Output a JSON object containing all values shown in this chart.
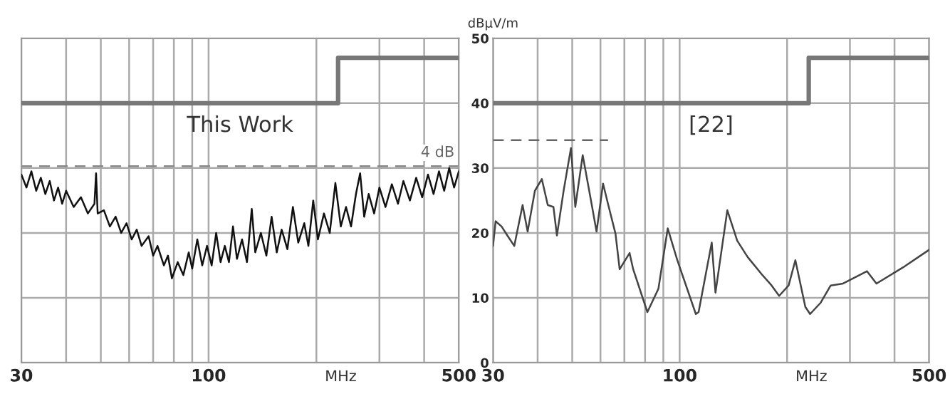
{
  "chart_data": [
    {
      "type": "line",
      "title": "This Work",
      "xlabel": "MHz",
      "log": "x",
      "xlim": [
        30,
        500
      ],
      "xticks": [
        30,
        {
          "value": 40,
          "label": null
        },
        {
          "value": 50,
          "label": null
        },
        {
          "value": 60,
          "label": null
        },
        {
          "value": 70,
          "label": null
        },
        {
          "value": 80,
          "label": null
        },
        {
          "value": 90,
          "label": null
        },
        100,
        {
          "value": 200,
          "label": null
        },
        {
          "value": 300,
          "label": null
        },
        {
          "value": 400,
          "label": null
        },
        500
      ],
      "ylim": [
        0,
        50
      ],
      "yticks": [
        0,
        10,
        20,
        30,
        40,
        50
      ],
      "tick_labels": "x",
      "grid": true,
      "ref_lines": [
        {
          "axis": "y",
          "value": 30.3,
          "color": "#888888",
          "line_style": "dashed"
        }
      ],
      "annotations": [
        "4 dB"
      ],
      "series": [
        {
          "type": "step",
          "color": "#777777",
          "x": [
            30,
            230,
            500
          ],
          "values": [
            40,
            47,
            47
          ]
        },
        {
          "color": "#111111",
          "x": [
            30,
            31,
            32,
            33,
            34,
            35,
            36,
            37,
            38,
            39,
            40,
            42,
            44,
            46,
            48,
            48.5,
            49,
            51,
            53,
            55,
            57,
            59,
            61,
            63,
            65,
            68,
            70,
            72,
            75,
            77,
            79,
            82,
            85,
            88,
            90,
            93,
            96,
            99,
            102,
            105,
            108,
            111,
            114,
            117,
            120,
            124,
            128,
            132,
            135,
            140,
            145,
            150,
            155,
            160,
            166,
            172,
            178,
            185,
            190,
            196,
            202,
            210,
            218,
            226,
            234,
            242,
            250,
            258,
            265,
            272,
            280,
            290,
            300,
            312,
            325,
            338,
            350,
            365,
            380,
            395,
            410,
            425,
            440,
            455,
            470,
            485,
            500
          ],
          "values": [
            29,
            27,
            29.5,
            26.5,
            28.5,
            26,
            28,
            25,
            27,
            24.5,
            26.5,
            24,
            25.5,
            23,
            24.5,
            29.2,
            23,
            23.5,
            21,
            22.5,
            20,
            21.5,
            19,
            20.5,
            18,
            19.5,
            16.5,
            18,
            15,
            16.5,
            13,
            15.5,
            13.5,
            17,
            14.5,
            19,
            15,
            18,
            15,
            20,
            15.5,
            18,
            15.5,
            21,
            16,
            19,
            15.5,
            23.7,
            17,
            20,
            16.5,
            22.5,
            17,
            20.5,
            17.5,
            24,
            18.5,
            21.5,
            18,
            25,
            19,
            23,
            20,
            27.7,
            21,
            24,
            21,
            26,
            29.2,
            22.5,
            26,
            23,
            27,
            24,
            27.5,
            24.5,
            28,
            25,
            28.5,
            25.5,
            29,
            26,
            29.5,
            26.5,
            30,
            27,
            29.5
          ]
        }
      ]
    },
    {
      "type": "line",
      "title": "[22]",
      "xlabel": "MHz",
      "ylabel": "dBµV/m",
      "log": "x",
      "xlim": [
        30,
        500
      ],
      "xticks": [
        30,
        {
          "value": 40,
          "label": null
        },
        {
          "value": 50,
          "label": null
        },
        {
          "value": 60,
          "label": null
        },
        {
          "value": 70,
          "label": null
        },
        {
          "value": 80,
          "label": null
        },
        {
          "value": 90,
          "label": null
        },
        100,
        {
          "value": 200,
          "label": null
        },
        {
          "value": 300,
          "label": null
        },
        {
          "value": 400,
          "label": null
        },
        500
      ],
      "ylim": [
        0,
        50
      ],
      "yticks": [
        0,
        10,
        20,
        30,
        40,
        50
      ],
      "grid": true,
      "series": [
        {
          "type": "step",
          "color": "#777777",
          "x": [
            30,
            230,
            500
          ],
          "values": [
            40,
            47,
            47
          ]
        },
        {
          "type": "line",
          "color": "#666666",
          "line_style": "dashed",
          "x": [
            30,
            63
          ],
          "values": [
            34.3,
            34.3
          ]
        },
        {
          "color": "#444444",
          "x": [
            30,
            30.5,
            31.7,
            33,
            34.4,
            36.3,
            37.5,
            39.3,
            41.1,
            42.7,
            44.3,
            45.3,
            47.3,
            49.6,
            51,
            53.5,
            56.6,
            58.5,
            61,
            63.1,
            66.1,
            67.9,
            72.4,
            74.1,
            81.2,
            87.2,
            92.6,
            98.5,
            111,
            113,
            123,
            126,
            136,
            145,
            155,
            170,
            181,
            190,
            202,
            211,
            225,
            232,
            248,
            265,
            287,
            335,
            356,
            423,
            500
          ],
          "values": [
            18,
            21.8,
            21,
            19.5,
            18,
            24.3,
            20.2,
            26.5,
            28.3,
            24.3,
            24,
            19.6,
            26.5,
            33.1,
            24,
            32,
            24.6,
            20.2,
            27.6,
            24.3,
            19.9,
            14.4,
            16.9,
            14.4,
            7.8,
            11.4,
            20.7,
            15.8,
            7.5,
            7.8,
            18.5,
            10.8,
            23.5,
            18.8,
            16.3,
            13.6,
            11.9,
            10.3,
            11.9,
            15.8,
            8.6,
            7.5,
            9.2,
            11.9,
            12.2,
            14.1,
            12.2,
            14.7,
            17.4
          ]
        }
      ]
    }
  ]
}
